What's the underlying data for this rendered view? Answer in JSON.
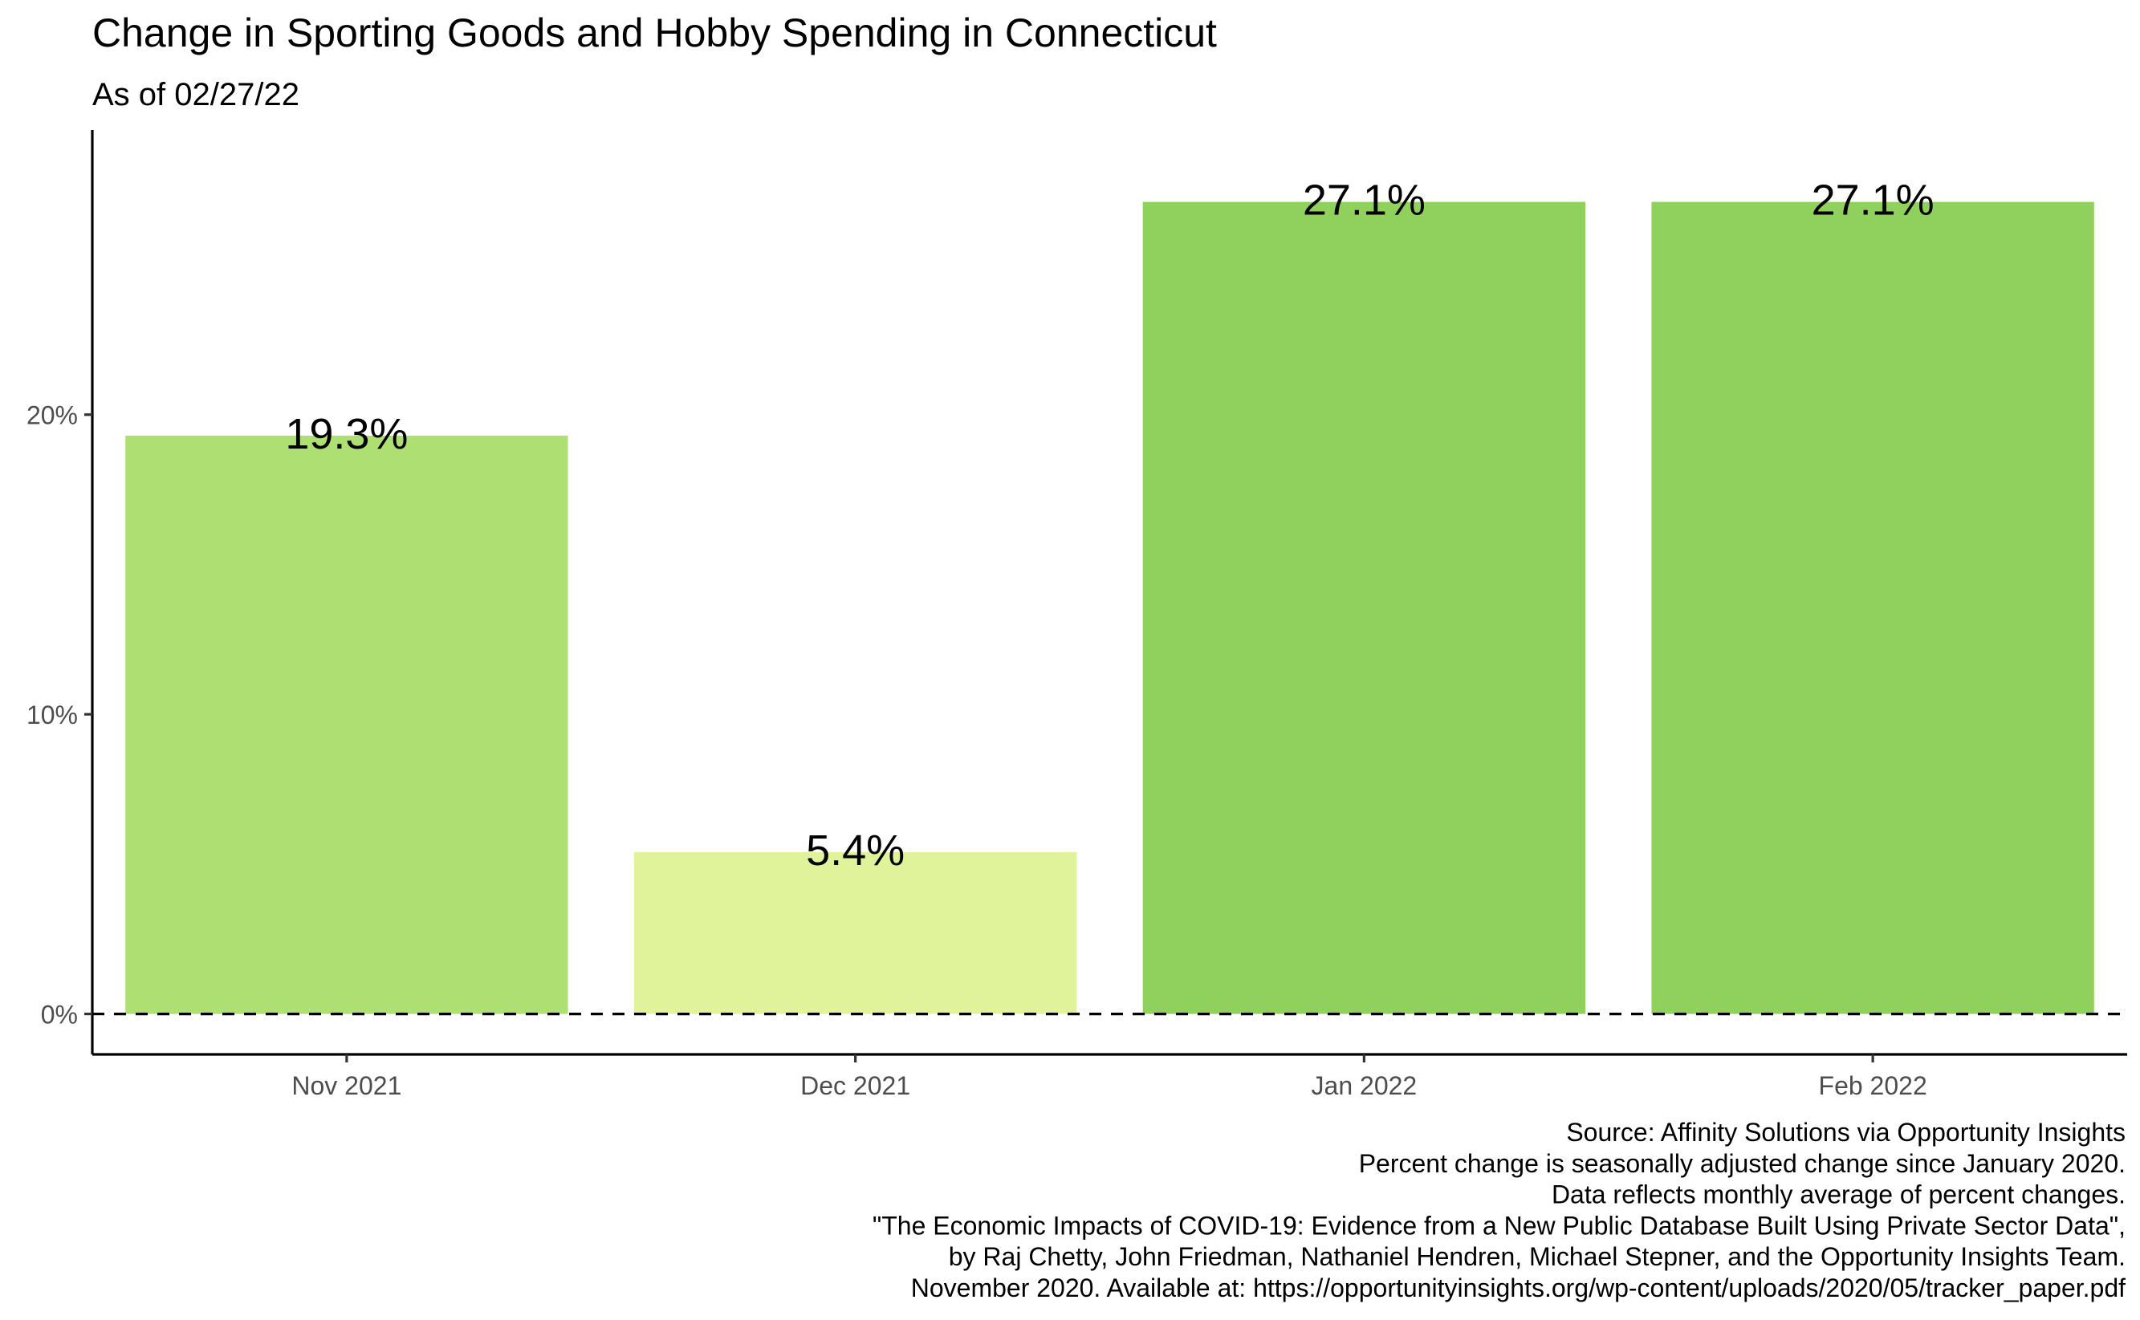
{
  "chart_data": {
    "type": "bar",
    "title": "Change in Sporting Goods and Hobby Spending in Connecticut",
    "subtitle": "As of 02/27/22",
    "categories": [
      "Nov 2021",
      "Dec 2021",
      "Jan 2022",
      "Feb 2022"
    ],
    "values": [
      19.3,
      5.4,
      27.1,
      27.1
    ],
    "data_labels": [
      "19.3%",
      "5.4%",
      "27.1%",
      "27.1%"
    ],
    "bar_colors": [
      "#addf72",
      "#e0f39a",
      "#90d05c",
      "#90d05c"
    ],
    "xlabel": "",
    "ylabel": "",
    "ylim": [
      -1.35,
      29.5
    ],
    "yticks": [
      0,
      10,
      20
    ],
    "ytick_labels": [
      "0%",
      "10%",
      "20%"
    ],
    "reference_line": {
      "y": 0,
      "style": "dashed"
    },
    "grid": false,
    "legend": "none",
    "caption": [
      "Source: Affinity Solutions via Opportunity Insights",
      "Percent change is seasonally adjusted change since January 2020.",
      "Data reflects monthly average of percent changes.",
      "\"The Economic Impacts of COVID-19: Evidence from a New Public Database Built Using Private Sector Data\",",
      "by Raj Chetty, John Friedman, Nathaniel Hendren, Michael Stepner, and the Opportunity Insights Team.",
      "November 2020. Available at: https://opportunityinsights.org/wp-content/uploads/2020/05/tracker_paper.pdf"
    ]
  }
}
